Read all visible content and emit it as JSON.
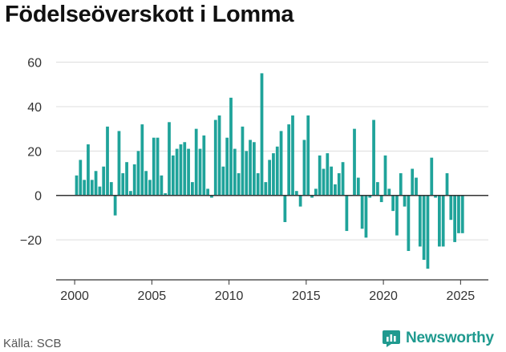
{
  "title": "Födelseöverskott i Lomma",
  "source": "Källa: SCB",
  "brand": "Newsworthy",
  "colors": {
    "bar": "#1fa39a",
    "grid": "#dddddd",
    "axis": "#333333",
    "brand": "#1f9a8f"
  },
  "chart_data": {
    "type": "bar",
    "title": "Födelseöverskott i Lomma",
    "xlabel": "",
    "ylabel": "",
    "ylim": [
      -38,
      62
    ],
    "xlim": [
      1998.8,
      2026.8
    ],
    "y_ticks": [
      60,
      40,
      20,
      0,
      -20
    ],
    "y_tick_labels": [
      "60",
      "40",
      "20",
      "0",
      "−20"
    ],
    "x_ticks": [
      2000,
      2005,
      2010,
      2015,
      2020,
      2025
    ],
    "x_tick_labels": [
      "2000",
      "2005",
      "2010",
      "2015",
      "2020",
      "2025"
    ],
    "grid": true,
    "start_year": 2000,
    "periods_per_year": 4,
    "values": [
      9,
      16,
      7,
      23,
      7,
      11,
      4,
      13,
      31,
      6,
      -9,
      29,
      10,
      15,
      2,
      14,
      20,
      32,
      11,
      7,
      26,
      26,
      9,
      1,
      33,
      18,
      21,
      23,
      24,
      21,
      6,
      30,
      21,
      27,
      3,
      -1,
      34,
      36,
      13,
      26,
      44,
      21,
      10,
      31,
      20,
      25,
      24,
      10,
      55,
      6,
      16,
      19,
      22,
      29,
      -12,
      32,
      36,
      2,
      -5,
      25,
      36,
      -1,
      3,
      18,
      12,
      19,
      13,
      5,
      10,
      15,
      -16,
      0,
      30,
      8,
      -15,
      -19,
      -1,
      34,
      6,
      -3,
      18,
      3,
      -7,
      -18,
      10,
      -5,
      -25,
      12,
      8,
      -23,
      -29,
      -33,
      17,
      -1,
      -23,
      -23,
      10,
      -11,
      -21,
      -17,
      -17
    ]
  }
}
